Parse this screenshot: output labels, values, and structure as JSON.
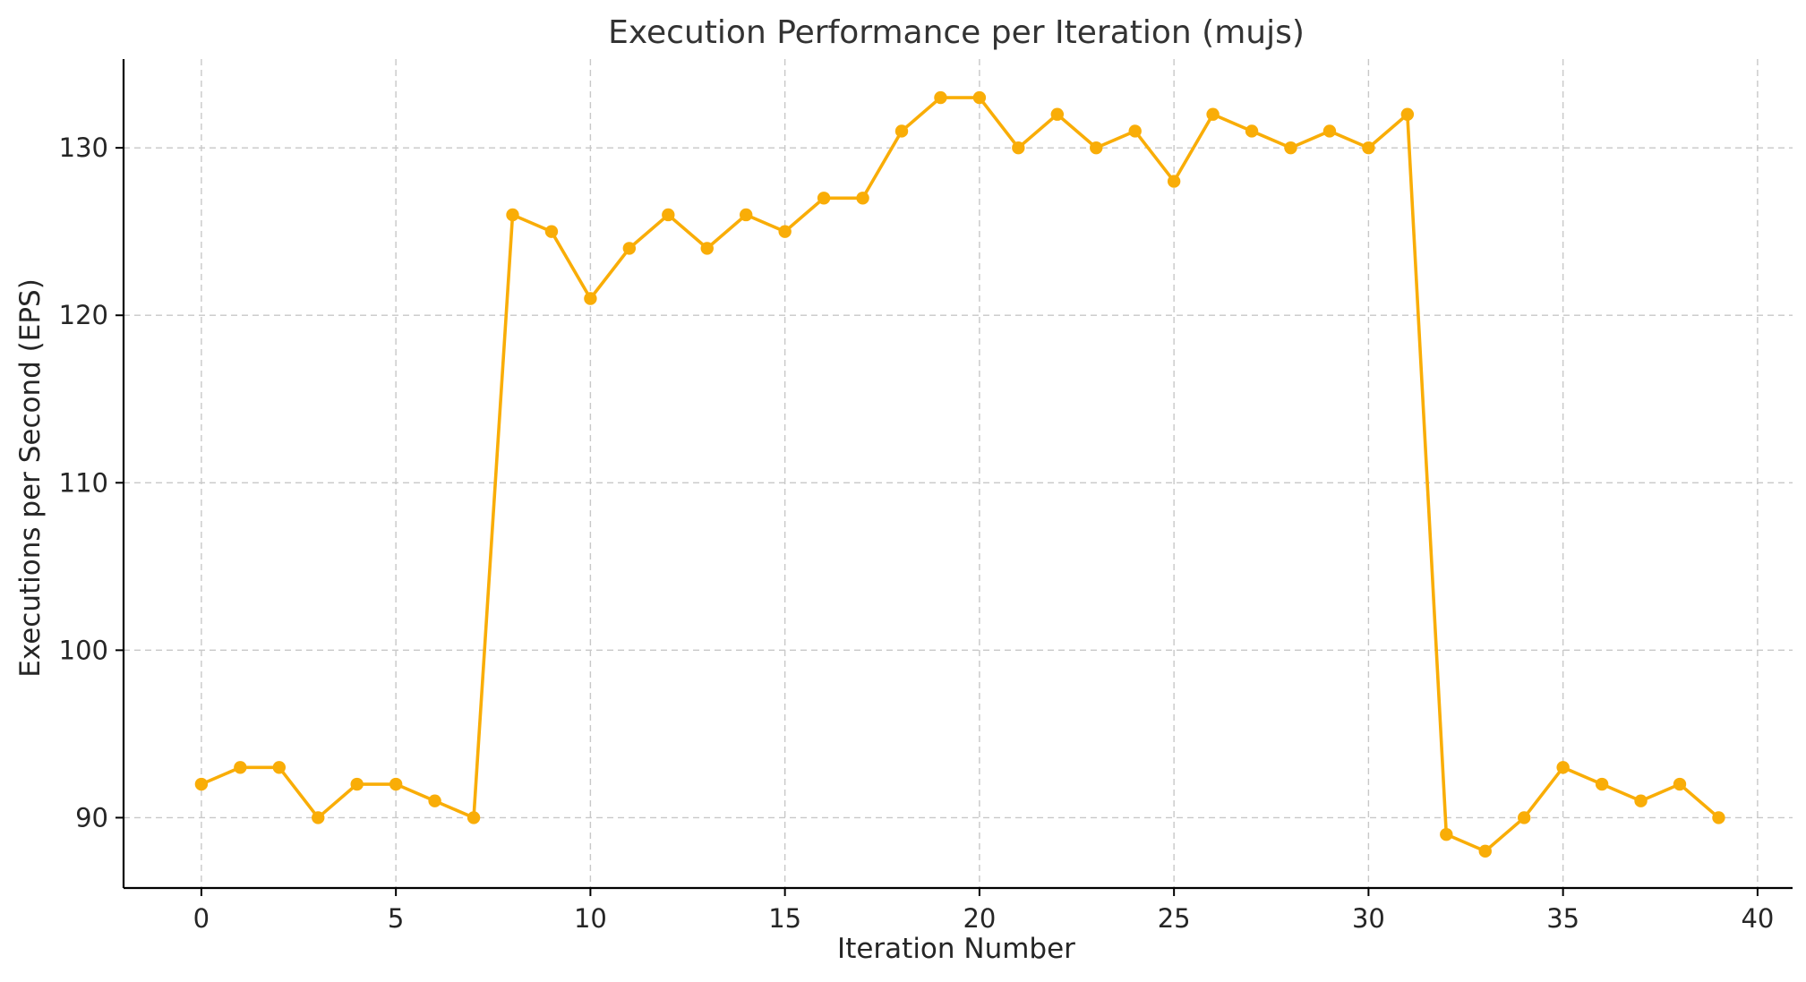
{
  "chart_data": {
    "type": "line",
    "title": "Execution Performance per Iteration (mujs)",
    "xlabel": "Iteration Number",
    "ylabel": "Executions per Second (EPS)",
    "x": [
      0,
      1,
      2,
      3,
      4,
      5,
      6,
      7,
      8,
      9,
      10,
      11,
      12,
      13,
      14,
      15,
      16,
      17,
      18,
      19,
      20,
      21,
      22,
      23,
      24,
      25,
      26,
      27,
      28,
      29,
      30,
      31,
      32,
      33,
      34,
      35,
      36,
      37,
      38,
      39
    ],
    "series": [
      {
        "values": [
          92,
          93,
          93,
          90,
          92,
          92,
          91,
          90,
          126,
          125,
          121,
          124,
          126,
          124,
          126,
          125,
          127,
          127,
          131,
          133,
          133,
          130,
          132,
          130,
          131,
          128,
          132,
          131,
          130,
          131,
          130,
          132,
          89,
          88,
          90,
          93,
          92,
          91,
          92,
          90
        ]
      }
    ],
    "xlim": [
      -2,
      40.9
    ],
    "ylim": [
      85.8,
      135.3
    ],
    "xticks": [
      0,
      5,
      10,
      15,
      20,
      25,
      30,
      35,
      40
    ],
    "yticks": [
      90,
      100,
      110,
      120,
      130
    ],
    "grid": true,
    "line_color": "#f9ad07",
    "marker": "circle"
  }
}
